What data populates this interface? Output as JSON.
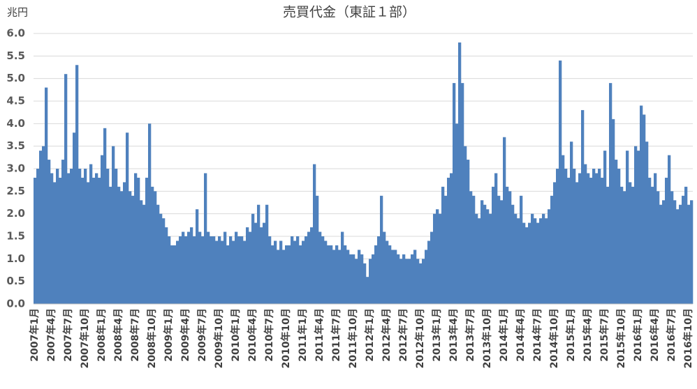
{
  "chart_data": {
    "type": "bar",
    "title": "売買代金（東証１部）",
    "y_label": "兆円",
    "color": "#4f81bd",
    "grid": true,
    "ylim": [
      0,
      6
    ],
    "yticks": [
      {
        "value": 0,
        "label": "0.0"
      },
      {
        "value": 0.5,
        "label": "0.5"
      },
      {
        "value": 1,
        "label": "1.0"
      },
      {
        "value": 1.5,
        "label": "1.5"
      },
      {
        "value": 2,
        "label": "2.0"
      },
      {
        "value": 2.5,
        "label": "2.5"
      },
      {
        "value": 3,
        "label": "3.0"
      },
      {
        "value": 3.5,
        "label": "3.5"
      },
      {
        "value": 4,
        "label": "4.0"
      },
      {
        "value": 4.5,
        "label": "4.5"
      },
      {
        "value": 5,
        "label": "5.0"
      },
      {
        "value": 5.5,
        "label": "5.5"
      },
      {
        "value": 6,
        "label": "6.0"
      }
    ],
    "categories": [
      "2007年1月",
      null,
      null,
      null,
      null,
      null,
      "2007年4月",
      null,
      null,
      null,
      null,
      null,
      "2007年7月",
      null,
      null,
      null,
      null,
      null,
      "2007年10月",
      null,
      null,
      null,
      null,
      null,
      "2008年1月",
      null,
      null,
      null,
      null,
      null,
      "2008年4月",
      null,
      null,
      null,
      null,
      null,
      "2008年7月",
      null,
      null,
      null,
      null,
      null,
      "2008年10月",
      null,
      null,
      null,
      null,
      null,
      "2009年1月",
      null,
      null,
      null,
      null,
      null,
      "2009年4月",
      null,
      null,
      null,
      null,
      null,
      "2009年7月",
      null,
      null,
      null,
      null,
      null,
      "2009年10月",
      null,
      null,
      null,
      null,
      null,
      "2010年1月",
      null,
      null,
      null,
      null,
      null,
      "2010年4月",
      null,
      null,
      null,
      null,
      null,
      "2010年7月",
      null,
      null,
      null,
      null,
      null,
      "2010年10月",
      null,
      null,
      null,
      null,
      null,
      "2011年1月",
      null,
      null,
      null,
      null,
      null,
      "2011年4月",
      null,
      null,
      null,
      null,
      null,
      "2011年7月",
      null,
      null,
      null,
      null,
      null,
      "2011年10月",
      null,
      null,
      null,
      null,
      null,
      "2012年1月",
      null,
      null,
      null,
      null,
      null,
      "2012年4月",
      null,
      null,
      null,
      null,
      null,
      "2012年7月",
      null,
      null,
      null,
      null,
      null,
      "2012年10月",
      null,
      null,
      null,
      null,
      null,
      "2013年1月",
      null,
      null,
      null,
      null,
      null,
      "2013年4月",
      null,
      null,
      null,
      null,
      null,
      "2013年7月",
      null,
      null,
      null,
      null,
      null,
      "2013年10月",
      null,
      null,
      null,
      null,
      null,
      "2014年1月",
      null,
      null,
      null,
      null,
      null,
      "2014年4月",
      null,
      null,
      null,
      null,
      null,
      "2014年7月",
      null,
      null,
      null,
      null,
      null,
      "2014年10月",
      null,
      null,
      null,
      null,
      null,
      "2015年1月",
      null,
      null,
      null,
      null,
      null,
      "2015年4月",
      null,
      null,
      null,
      null,
      null,
      "2015年7月",
      null,
      null,
      null,
      null,
      null,
      "2015年10月",
      null,
      null,
      null,
      null,
      null,
      "2016年1月",
      null,
      null,
      null,
      null,
      null,
      "2016年4月",
      null,
      null,
      null,
      null,
      null,
      "2016年7月",
      null,
      null,
      null,
      null,
      null,
      "2016年10月",
      null
    ],
    "values": [
      2.8,
      3.0,
      3.4,
      3.5,
      4.8,
      3.2,
      2.9,
      2.7,
      3.0,
      2.8,
      3.2,
      5.1,
      2.9,
      3.0,
      3.8,
      5.3,
      3.0,
      2.8,
      3.0,
      2.7,
      3.1,
      2.8,
      2.9,
      2.8,
      3.3,
      3.9,
      3.0,
      2.6,
      3.5,
      3.0,
      2.6,
      2.5,
      2.7,
      3.8,
      2.5,
      2.4,
      2.9,
      2.8,
      2.3,
      2.2,
      2.8,
      4.0,
      2.6,
      2.5,
      2.2,
      2.0,
      1.9,
      1.7,
      1.5,
      1.3,
      1.3,
      1.4,
      1.5,
      1.6,
      1.5,
      1.6,
      1.7,
      1.5,
      2.1,
      1.6,
      1.5,
      2.9,
      1.6,
      1.5,
      1.5,
      1.4,
      1.5,
      1.4,
      1.6,
      1.3,
      1.5,
      1.4,
      1.6,
      1.5,
      1.5,
      1.4,
      1.7,
      1.6,
      2.0,
      1.8,
      2.2,
      1.7,
      1.8,
      2.2,
      1.5,
      1.3,
      1.4,
      1.2,
      1.4,
      1.2,
      1.3,
      1.3,
      1.5,
      1.4,
      1.5,
      1.3,
      1.4,
      1.5,
      1.6,
      1.7,
      3.1,
      2.4,
      1.6,
      1.5,
      1.4,
      1.3,
      1.3,
      1.2,
      1.3,
      1.2,
      1.6,
      1.3,
      1.2,
      1.1,
      1.1,
      1.0,
      1.2,
      1.1,
      0.9,
      0.6,
      1.0,
      1.1,
      1.3,
      1.5,
      2.4,
      1.6,
      1.4,
      1.3,
      1.2,
      1.2,
      1.1,
      1.0,
      1.1,
      1.0,
      1.0,
      1.1,
      1.2,
      1.0,
      0.9,
      1.0,
      1.2,
      1.4,
      1.6,
      2.0,
      2.1,
      2.0,
      2.6,
      2.4,
      2.8,
      2.9,
      4.9,
      4.0,
      5.8,
      4.9,
      3.5,
      3.2,
      2.5,
      2.4,
      2.0,
      1.9,
      2.3,
      2.2,
      2.1,
      2.0,
      2.6,
      2.9,
      2.4,
      2.3,
      3.7,
      2.6,
      2.5,
      2.2,
      2.0,
      1.9,
      2.4,
      1.8,
      1.7,
      1.8,
      2.0,
      1.9,
      1.8,
      1.9,
      2.0,
      1.9,
      2.1,
      2.4,
      2.7,
      3.0,
      5.4,
      3.3,
      3.0,
      2.8,
      3.6,
      3.0,
      2.7,
      2.9,
      4.3,
      3.1,
      2.9,
      2.8,
      3.0,
      2.9,
      3.0,
      2.8,
      3.4,
      2.6,
      4.9,
      4.1,
      3.2,
      3.0,
      2.6,
      2.5,
      3.4,
      2.7,
      2.6,
      3.5,
      3.4,
      4.4,
      4.2,
      3.6,
      2.8,
      2.6,
      2.9,
      2.5,
      2.2,
      2.3,
      2.8,
      3.3,
      2.5,
      2.3,
      2.1,
      2.2,
      2.4,
      2.6,
      2.2,
      2.3
    ]
  }
}
